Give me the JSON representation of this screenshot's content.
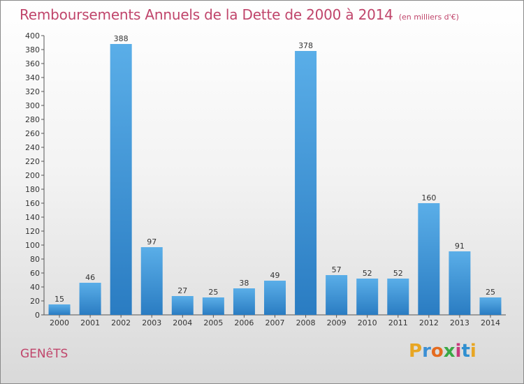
{
  "title": "Remboursements Annuels de la Dette de 2000 à 2014",
  "unit_note": "(en milliers d'€)",
  "commune": "GENêTS",
  "logo": {
    "letters": [
      "P",
      "r",
      "o",
      "x",
      "i",
      "t",
      "i"
    ]
  },
  "colors": {
    "title": "#c0456b",
    "bar_top": "#5aaee8",
    "bar_bottom": "#2a7cc2",
    "axis": "#555555"
  },
  "chart_data": {
    "type": "bar",
    "title": "Remboursements Annuels de la Dette de 2000 à 2014",
    "categories": [
      "2000",
      "2001",
      "2002",
      "2003",
      "2004",
      "2005",
      "2006",
      "2007",
      "2008",
      "2009",
      "2010",
      "2011",
      "2012",
      "2013",
      "2014"
    ],
    "values": [
      15,
      46,
      388,
      97,
      27,
      25,
      38,
      49,
      378,
      57,
      52,
      52,
      160,
      91,
      25
    ],
    "ylim": [
      0,
      400
    ],
    "yticks": [
      0,
      20,
      40,
      60,
      80,
      100,
      120,
      140,
      160,
      180,
      200,
      220,
      240,
      260,
      280,
      300,
      320,
      340,
      360,
      380,
      400
    ],
    "xlabel": "",
    "ylabel": "",
    "grid": false,
    "data_labels": true
  }
}
